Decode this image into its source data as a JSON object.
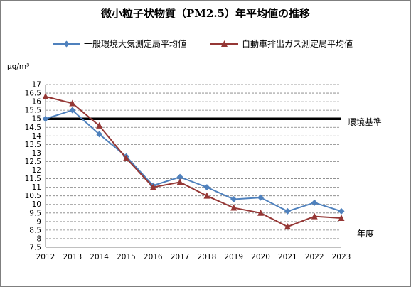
{
  "chart_data": {
    "type": "line",
    "title": "微小粒子状物質（PM2.5）年平均値の推移",
    "ylabel": "μg/m³",
    "xlabel": "年度",
    "categories": [
      "2012",
      "2013",
      "2014",
      "2015",
      "2016",
      "2017",
      "2018",
      "2019",
      "2020",
      "2021",
      "2022",
      "2023"
    ],
    "ylim": [
      7.5,
      17
    ],
    "yticks": [
      "7.5",
      "8",
      "8.5",
      "9",
      "9.5",
      "10",
      "10.5",
      "11",
      "11.5",
      "12",
      "12.5",
      "13",
      "13.5",
      "14",
      "14.5",
      "15",
      "15.5",
      "16",
      "16.5",
      "17"
    ],
    "grid": true,
    "legend_position": "top",
    "series": [
      {
        "name": "一般環境大気測定局平均値",
        "color": "#4f81bd",
        "marker": "diamond",
        "values": [
          15.0,
          15.5,
          14.1,
          12.8,
          11.1,
          11.6,
          11.0,
          10.3,
          10.4,
          9.6,
          10.1,
          9.6
        ]
      },
      {
        "name": "自動車排出ガス測定局平均値",
        "color": "#953735",
        "marker": "triangle",
        "values": [
          16.3,
          15.9,
          14.6,
          12.7,
          11.0,
          11.3,
          10.5,
          9.8,
          9.5,
          8.7,
          9.3,
          9.2
        ]
      }
    ],
    "annotations": [
      {
        "label": "環境基準",
        "value": 15
      }
    ]
  }
}
